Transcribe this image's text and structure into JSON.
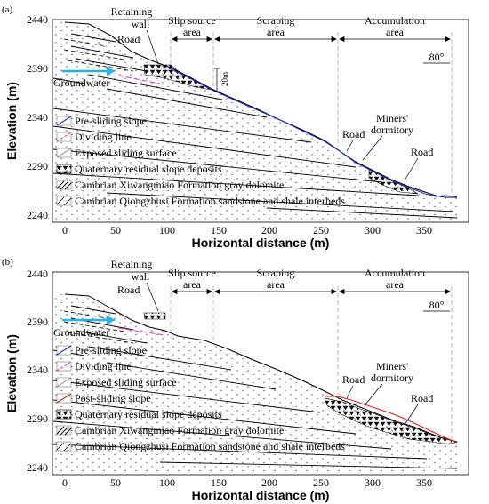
{
  "panels": [
    {
      "label": "(a)",
      "zones": [
        "Slip source area",
        "Scraping area",
        "Accumulation area"
      ],
      "annotations": {
        "retaining_wall": "Retaining wall",
        "road_top": "Road",
        "road_mid": "Road",
        "road_low": "Road",
        "groundwater": "Groundwater",
        "dormitory": "Miners' dormitory",
        "scale": "20m",
        "dip": "80°"
      },
      "legend": [
        "Pre-sliding slope",
        "Dividing line",
        "Exposed sliding surface",
        "Quaternary residual slope deposits",
        "Cambrian Xiwangmiao Formation gray dolomite",
        "Cambrian Qiongzhusi Formation sandstone and shale interbeds"
      ]
    },
    {
      "label": "(b)",
      "zones": [
        "Slip source area",
        "Scraping area",
        "Accumulation area"
      ],
      "annotations": {
        "retaining_wall": "Retaining wall",
        "road_top": "Road",
        "road_mid": "Road",
        "road_low": "Road",
        "groundwater": "Groundwater",
        "dormitory": "Miners' dormitory",
        "dip": "80°"
      },
      "legend": [
        "Pre-sliding slope",
        "Dividing line",
        "Exposed sliding surface",
        "Post-sliding slope",
        "Quaternary residual slope deposits",
        "Cambrian Xiwangmiao Formation gray dolomite",
        "Cambrian Qiongzhusi Formation sandstone and shale interbeds"
      ]
    }
  ],
  "axes": {
    "xlabel": "Horizontal distance (m)",
    "ylabel": "Elevation (m)",
    "xticks": [
      "0",
      "50",
      "100",
      "150",
      "200",
      "250",
      "300",
      "350"
    ],
    "yticks": [
      "2440",
      "2390",
      "2340",
      "2290",
      "2240"
    ]
  },
  "colors": {
    "pre_sliding": "#2233cc",
    "dividing": "#e83ad6",
    "post_sliding": "#e02020",
    "groundwater": "#2ab0f0"
  }
}
